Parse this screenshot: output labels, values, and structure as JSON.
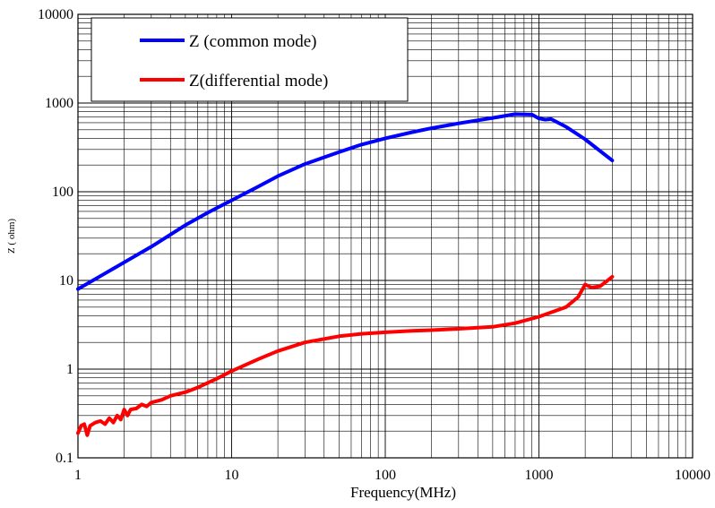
{
  "chart_data": {
    "type": "line",
    "xlabel": "Frequency(MHz)",
    "ylabel": "Z ( ohm)",
    "x_scale": "log",
    "y_scale": "log",
    "xlim": [
      1,
      10000
    ],
    "ylim": [
      0.1,
      10000
    ],
    "x_ticks": [
      "1",
      "10",
      "100",
      "1000",
      "10000"
    ],
    "y_ticks": [
      "0.1",
      "1",
      "10",
      "100",
      "1000",
      "10000"
    ],
    "grid": true,
    "legend": "top-left",
    "series": [
      {
        "name": "Z (common mode)",
        "color": "#0000ff",
        "x": [
          1,
          1.5,
          2,
          3,
          5,
          7,
          10,
          15,
          20,
          30,
          50,
          70,
          100,
          150,
          200,
          300,
          500,
          700,
          900,
          1000,
          1100,
          1200,
          1500,
          2000,
          3000
        ],
        "y": [
          8,
          12,
          16,
          24,
          42,
          58,
          80,
          115,
          150,
          205,
          280,
          340,
          400,
          470,
          520,
          590,
          680,
          750,
          740,
          670,
          650,
          660,
          540,
          390,
          225
        ]
      },
      {
        "name": "Z(differential mode)",
        "color": "#ff0000",
        "x": [
          1,
          1.05,
          1.1,
          1.15,
          1.2,
          1.3,
          1.4,
          1.5,
          1.6,
          1.7,
          1.8,
          1.9,
          2,
          2.1,
          2.2,
          2.4,
          2.6,
          2.8,
          3,
          3.5,
          4,
          5,
          6,
          7,
          8,
          10,
          15,
          20,
          30,
          50,
          70,
          100,
          150,
          200,
          300,
          500,
          700,
          1000,
          1500,
          1800,
          2000,
          2200,
          2500,
          2800,
          3000
        ],
        "y": [
          0.19,
          0.23,
          0.24,
          0.18,
          0.23,
          0.25,
          0.26,
          0.24,
          0.28,
          0.25,
          0.3,
          0.27,
          0.35,
          0.3,
          0.35,
          0.36,
          0.4,
          0.38,
          0.42,
          0.45,
          0.5,
          0.55,
          0.62,
          0.7,
          0.78,
          0.95,
          1.3,
          1.6,
          2.0,
          2.35,
          2.5,
          2.6,
          2.7,
          2.75,
          2.85,
          3.0,
          3.3,
          3.9,
          5.0,
          6.5,
          9.0,
          8.3,
          8.6,
          10.0,
          11.0
        ]
      }
    ]
  }
}
